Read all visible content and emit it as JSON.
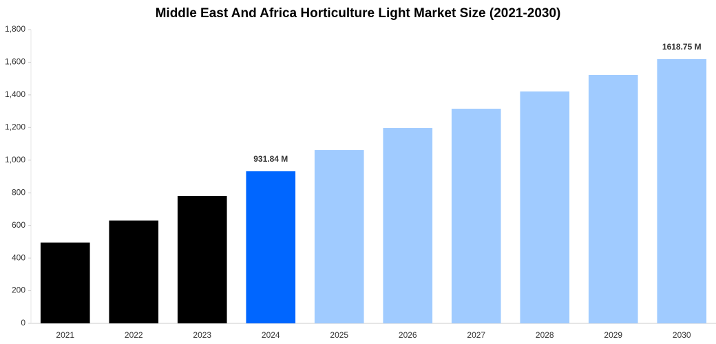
{
  "chart_data": {
    "type": "bar",
    "title": "Middle East And Africa Horticulture Light Market Size (2021-2030)",
    "categories": [
      "2021",
      "2022",
      "2023",
      "2024",
      "2025",
      "2026",
      "2027",
      "2028",
      "2029",
      "2030"
    ],
    "values": [
      495,
      630,
      780,
      931.84,
      1062,
      1197,
      1315,
      1421,
      1522,
      1618.75
    ],
    "value_labels": [
      null,
      null,
      null,
      "931.84 M",
      null,
      null,
      null,
      null,
      null,
      "1618.75 M"
    ],
    "colors": [
      "#000000",
      "#000000",
      "#000000",
      "#0066ff",
      "#a0cbff",
      "#a0cbff",
      "#a0cbff",
      "#a0cbff",
      "#a0cbff",
      "#a0cbff"
    ],
    "ylim": [
      0,
      1800
    ],
    "yticks": [
      0,
      200,
      400,
      600,
      800,
      {
        "value": 1000,
        "label": "1,000"
      },
      {
        "value": 1200,
        "label": "1,200"
      },
      {
        "value": 1400,
        "label": "1,400"
      },
      {
        "value": 1600,
        "label": "1,600"
      },
      {
        "value": 1800,
        "label": "1,800"
      }
    ],
    "grid": false
  }
}
